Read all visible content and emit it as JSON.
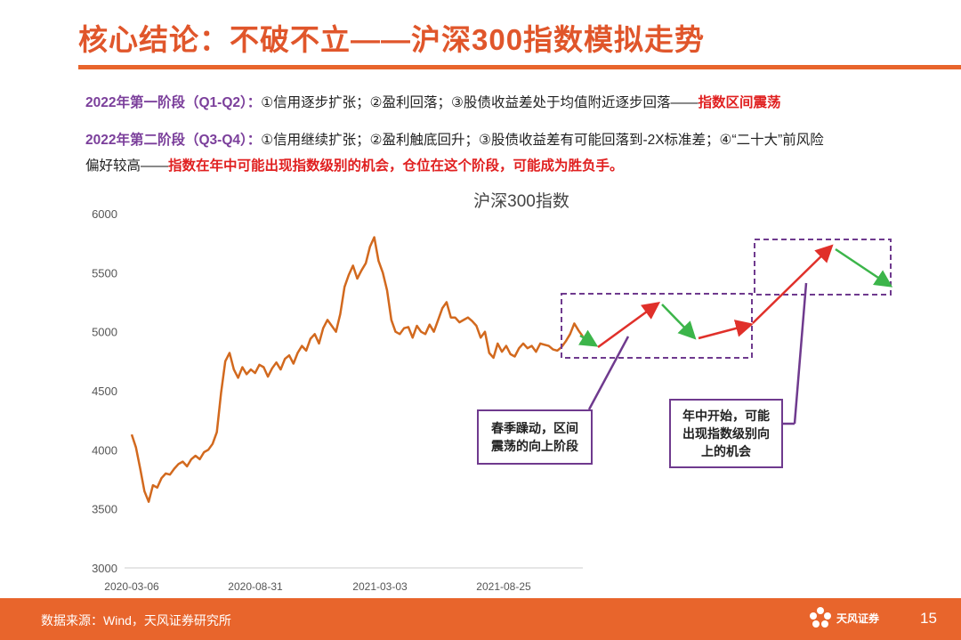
{
  "header": {
    "title": "核心结论：不破不立——沪深300指数模拟走势"
  },
  "summary": {
    "line1": {
      "prefix": "2022年第一阶段（Q1-Q2）：",
      "body": "①信用逐步扩张；②盈利回落；③股债收益差处于均值附近逐步回落——",
      "highlight": "指数区间震荡"
    },
    "line2": {
      "prefix": "2022年第二阶段（Q3-Q4）：",
      "body": "①信用继续扩张；②盈利触底回升；③股债收益差有可能回落到-2X标准差；④“二十大”前风险"
    },
    "line3": {
      "body": "偏好较高——",
      "highlight": "指数在年中可能出现指数级别的机会，仓位在这个阶段，可能成为胜负手。"
    }
  },
  "callouts": {
    "first": {
      "line1": "春季躁动，区间",
      "line2": "震荡的向上阶段"
    },
    "second": {
      "line1": "年中开始，可能",
      "line2": "出现指数级别向",
      "line3": "上的机会"
    }
  },
  "colors": {
    "series": "#d2691e",
    "up_arrow": "#e0302a",
    "down_arrow": "#3cb54a",
    "dashed_box": "#6f3a8e",
    "accent": "#e8652c"
  },
  "chart_data": {
    "type": "line",
    "title": "沪深300指数",
    "xlabel": "",
    "ylabel": "",
    "ylim": [
      3000,
      6000
    ],
    "yticks": [
      3000,
      3500,
      4000,
      4500,
      5000,
      5500,
      6000
    ],
    "xticks": [
      "2020-03-06",
      "2020-08-31",
      "2021-03-03",
      "2021-08-25"
    ],
    "grid": false,
    "series": [
      {
        "values": [
          4130,
          4020,
          3840,
          3650,
          3560,
          3700,
          3680,
          3760,
          3800,
          3790,
          3840,
          3880,
          3900,
          3860,
          3920,
          3950,
          3920,
          3980,
          4000,
          4050,
          4150,
          4480,
          4750,
          4820,
          4680,
          4610,
          4700,
          4640,
          4680,
          4650,
          4720,
          4700,
          4620,
          4690,
          4740,
          4680,
          4770,
          4800,
          4730,
          4820,
          4880,
          4840,
          4940,
          4980,
          4900,
          5030,
          5100,
          5050,
          5000,
          5150,
          5380,
          5480,
          5560,
          5450,
          5520,
          5580,
          5720,
          5800,
          5600,
          5500,
          5350,
          5100,
          5000,
          4980,
          5030,
          5040,
          4950,
          5050,
          5000,
          4980,
          5060,
          5000,
          5100,
          5200,
          5250,
          5120,
          5120,
          5080,
          5100,
          5120,
          5090,
          5050,
          4950,
          5000,
          4820,
          4780,
          4900,
          4830,
          4880,
          4810,
          4790,
          4860,
          4900,
          4860,
          4880,
          4830,
          4900,
          4890,
          4880,
          4850,
          4840,
          4870,
          4920,
          4980,
          5070,
          5010,
          4960
        ]
      }
    ],
    "projection_path": [
      {
        "point": 1,
        "direction": "down"
      },
      {
        "point": 2,
        "direction": "up"
      },
      {
        "point": 3,
        "direction": "down"
      },
      {
        "point": 4,
        "direction": "up"
      },
      {
        "point": 5,
        "direction": "up"
      },
      {
        "point": 6,
        "direction": "down"
      }
    ]
  },
  "footer": {
    "source": "数据来源：Wind，天风证券研究所",
    "brand": "天风证券",
    "page": "15"
  }
}
